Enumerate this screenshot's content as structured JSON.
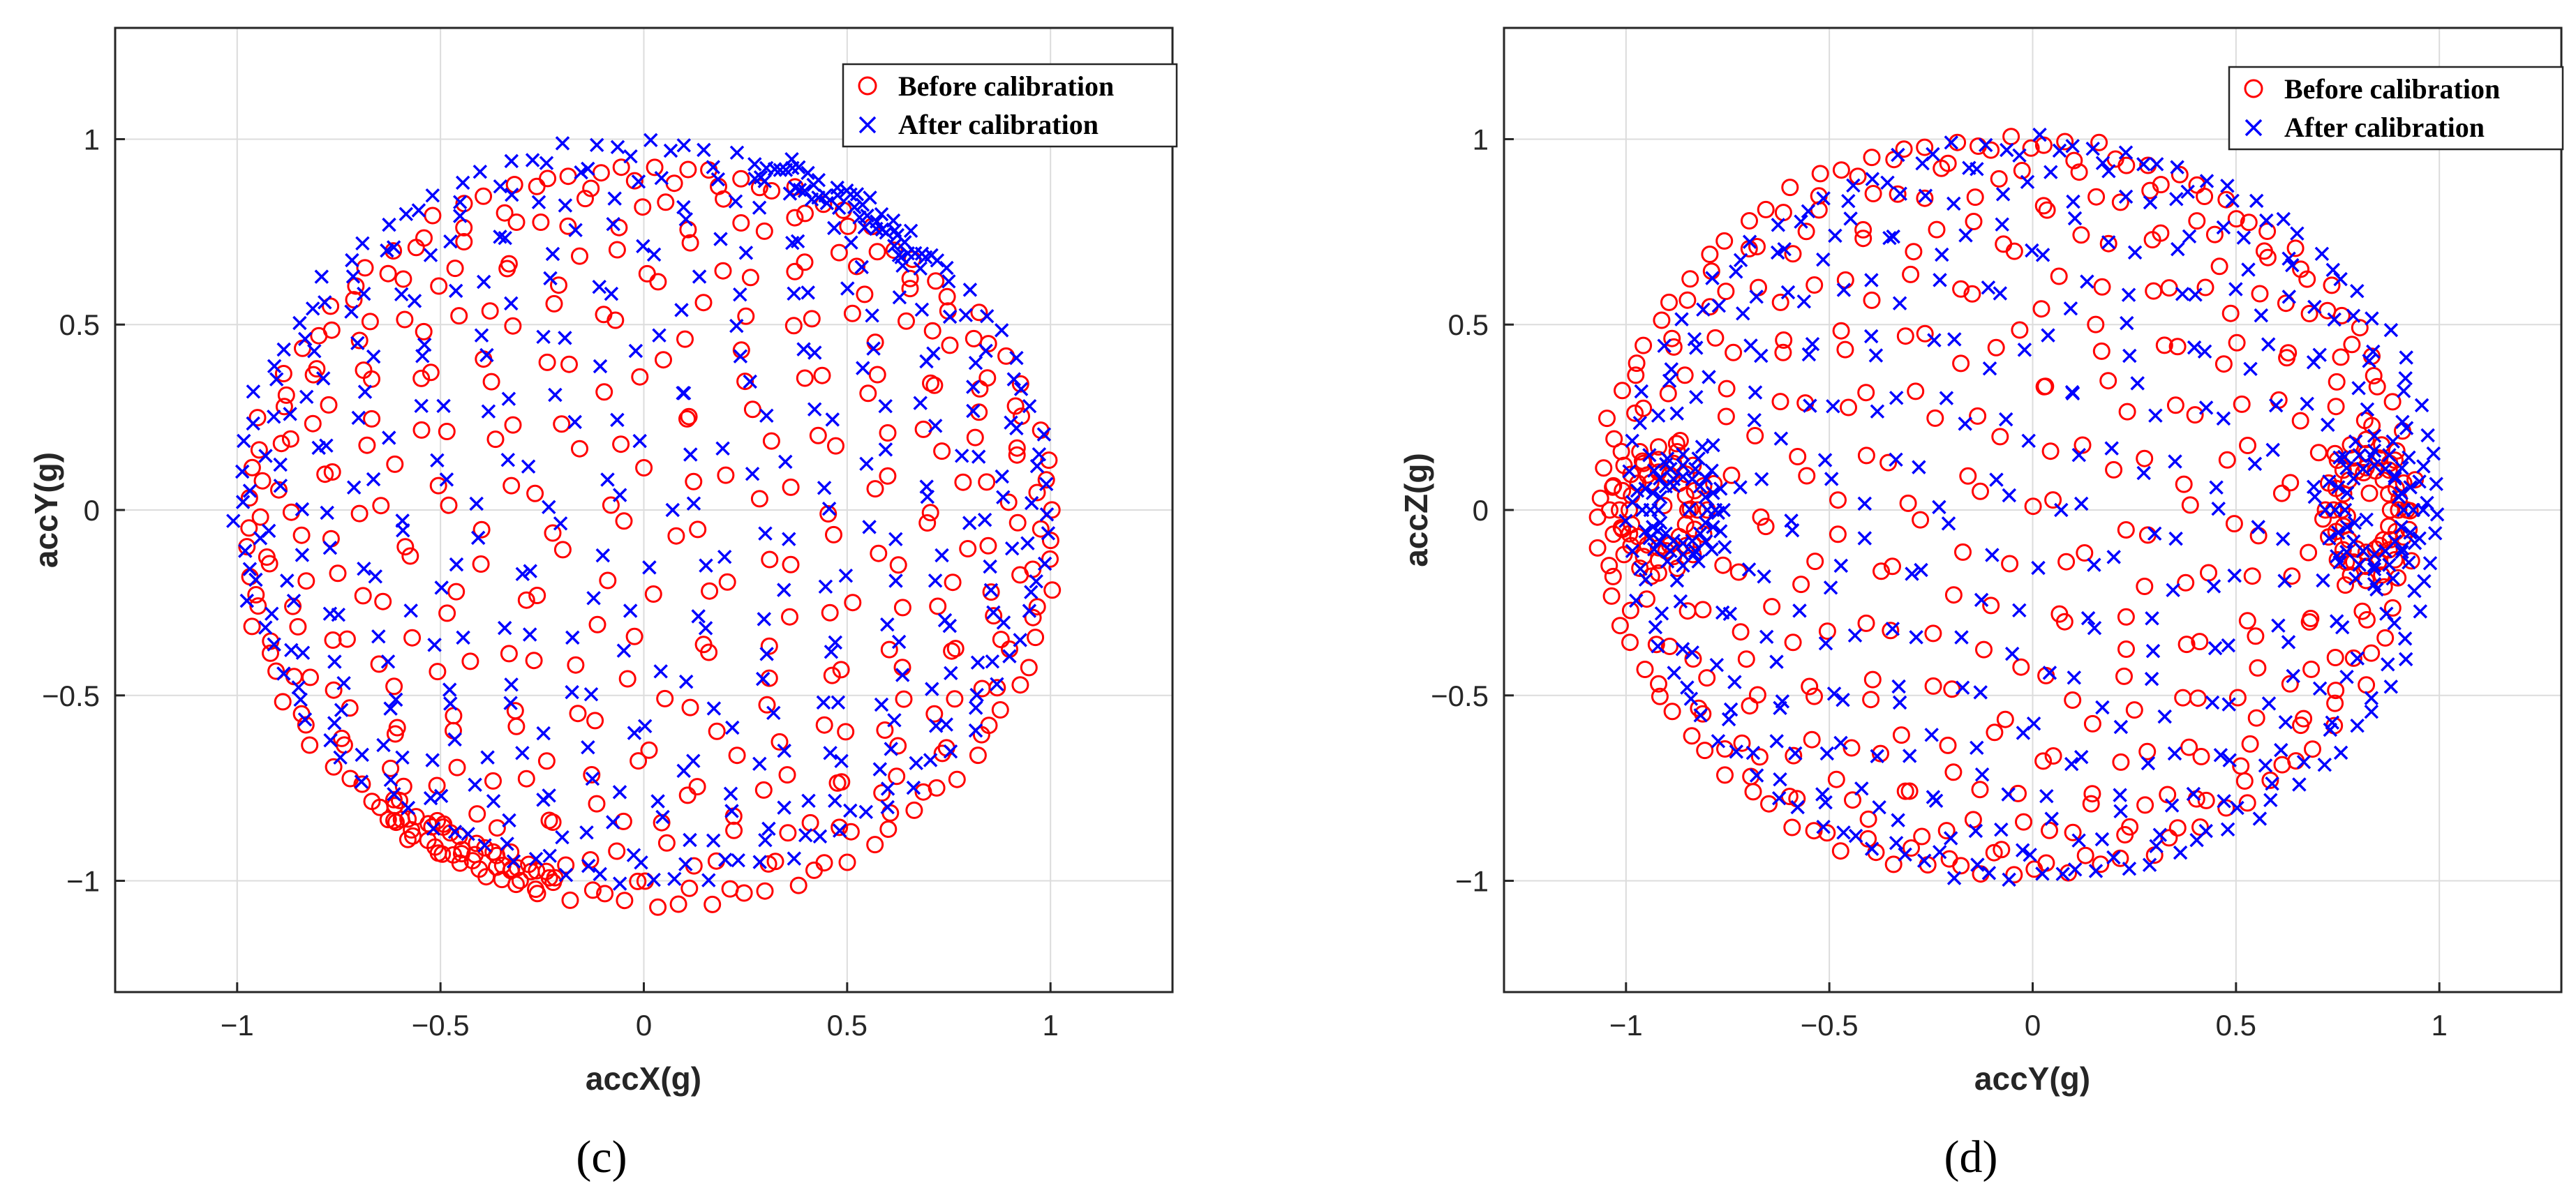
{
  "colors": {
    "before": "#ff0000",
    "after": "#0000ff",
    "axis": "#262626",
    "grid": "#dcdcdc"
  },
  "chart_data": [
    {
      "type": "scatter",
      "panel_label": "(c)",
      "xlabel": "accX(g)",
      "ylabel": "accY(g)",
      "xlim": [
        -1.3,
        1.3
      ],
      "ylim": [
        -1.3,
        1.3
      ],
      "xticks": [
        -1,
        -0.5,
        0,
        0.5,
        1
      ],
      "yticks": [
        -1,
        -0.5,
        0,
        0.5,
        1
      ],
      "xtick_labels": [
        "−1",
        "−0.5",
        "0",
        "0.5",
        "1"
      ],
      "ytick_labels": [
        "−1",
        "−0.5",
        "0",
        "0.5",
        "1"
      ],
      "grid": true,
      "legend_position": "top-right",
      "series": [
        {
          "name": "Before calibration",
          "marker": "circle",
          "color": "#ff0000",
          "shape": "sphere",
          "center": [
            0.01,
            -0.07
          ],
          "radius": 1.0,
          "points": 400,
          "dense_arc": {
            "angle": -118,
            "span": 28
          }
        },
        {
          "name": "After calibration",
          "marker": "x",
          "color": "#0000ff",
          "shape": "sphere",
          "center": [
            0.0,
            0.0
          ],
          "radius": 1.0,
          "points": 400,
          "dense_arc": {
            "angle": 58,
            "span": 30
          }
        }
      ]
    },
    {
      "type": "scatter",
      "panel_label": "(d)",
      "xlabel": "accY(g)",
      "ylabel": "accZ(g)",
      "xlim": [
        -1.3,
        1.3
      ],
      "ylim": [
        -1.3,
        1.3
      ],
      "xticks": [
        -1,
        -0.5,
        0,
        0.5,
        1
      ],
      "yticks": [
        -1,
        -0.5,
        0,
        0.5,
        1
      ],
      "xtick_labels": [
        "−1",
        "−0.5",
        "0",
        "0.5",
        "1"
      ],
      "ytick_labels": [
        "−1",
        "−0.5",
        "0",
        "0.5",
        "1"
      ],
      "grid": true,
      "legend_position": "top-right",
      "series": [
        {
          "name": "Before calibration",
          "marker": "circle",
          "color": "#ff0000",
          "shape": "sphere",
          "center": [
            -0.07,
            0.01
          ],
          "radius": 1.0,
          "points": 400,
          "rings": [
            {
              "cx": -0.92,
              "cy": 0.0,
              "rx": 0.12,
              "ry": 0.17
            },
            {
              "cx": 0.82,
              "cy": 0.0,
              "rx": 0.1,
              "ry": 0.19
            }
          ]
        },
        {
          "name": "After calibration",
          "marker": "x",
          "color": "#0000ff",
          "shape": "sphere",
          "center": [
            0.0,
            0.0
          ],
          "radius": 1.0,
          "points": 400,
          "rings": [
            {
              "cx": -0.86,
              "cy": 0.0,
              "rx": 0.1,
              "ry": 0.15
            },
            {
              "cx": 0.84,
              "cy": 0.0,
              "rx": 0.12,
              "ry": 0.2
            }
          ]
        }
      ]
    }
  ]
}
